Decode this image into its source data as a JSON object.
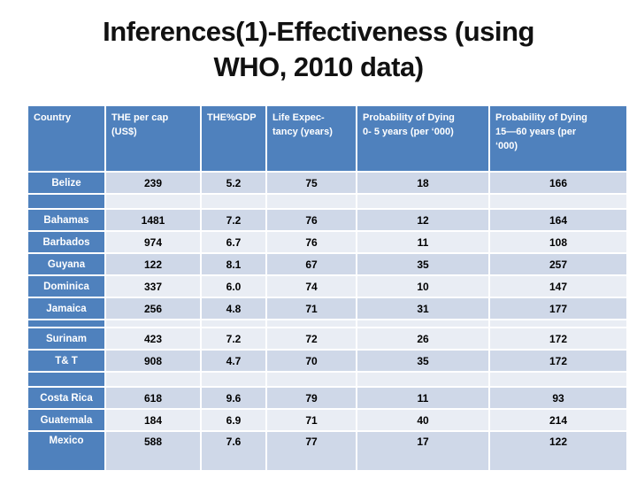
{
  "title": {
    "line1": "Inferences(1)-Effectiveness (using",
    "line2": "WHO, 2010 data)"
  },
  "table": {
    "columns": [
      {
        "label": "Country"
      },
      {
        "label": "THE per cap\n(US$)"
      },
      {
        "label": "THE%GDP"
      },
      {
        "label": "Life Expec-\ntancy (years)"
      },
      {
        "label": "Probability of Dying\n0- 5 years (per ‘000)"
      },
      {
        "label": "Probability of Dying\n15—60 years (per\n‘000)"
      }
    ],
    "rows": [
      {
        "country": "Belize",
        "values": [
          "239",
          "5.2",
          "75",
          "18",
          "166"
        ],
        "band": "dark",
        "kind": "normal"
      },
      {
        "country": "",
        "values": [
          "",
          "",
          "",
          "",
          ""
        ],
        "band": "light",
        "kind": "spacer"
      },
      {
        "country": "Bahamas",
        "values": [
          "1481",
          "7.2",
          "76",
          "12",
          "164"
        ],
        "band": "dark",
        "kind": "normal"
      },
      {
        "country": "Barbados",
        "values": [
          "974",
          "6.7",
          "76",
          "11",
          "108"
        ],
        "band": "light",
        "kind": "normal"
      },
      {
        "country": "Guyana",
        "values": [
          "122",
          "8.1",
          "67",
          "35",
          "257"
        ],
        "band": "dark",
        "kind": "normal"
      },
      {
        "country": "Dominica",
        "values": [
          "337",
          "6.0",
          "74",
          "10",
          "147"
        ],
        "band": "light",
        "kind": "normal"
      },
      {
        "country": "Jamaica",
        "values": [
          "256",
          "4.8",
          "71",
          "31",
          "177"
        ],
        "band": "dark",
        "kind": "normal"
      },
      {
        "country": "",
        "values": [
          "",
          "",
          "",
          "",
          ""
        ],
        "band": "light",
        "kind": "spacer-s"
      },
      {
        "country": "Surinam",
        "values": [
          "423",
          "7.2",
          "72",
          "26",
          "172"
        ],
        "band": "light",
        "kind": "normal"
      },
      {
        "country": "T& T",
        "values": [
          "908",
          "4.7",
          "70",
          "35",
          "172"
        ],
        "band": "dark",
        "kind": "normal"
      },
      {
        "country": "",
        "values": [
          "",
          "",
          "",
          "",
          ""
        ],
        "band": "light",
        "kind": "spacer"
      },
      {
        "country": "Costa Rica",
        "values": [
          "618",
          "9.6",
          "79",
          "11",
          "93"
        ],
        "band": "dark",
        "kind": "normal"
      },
      {
        "country": "Guatemala",
        "values": [
          "184",
          "6.9",
          "71",
          "40",
          "214"
        ],
        "band": "light",
        "kind": "normal"
      },
      {
        "country": "Mexico",
        "values": [
          "588",
          "7.6",
          "77",
          "17",
          "122"
        ],
        "band": "dark",
        "kind": "tall"
      }
    ]
  },
  "colors": {
    "accent": "#4F81BD",
    "band_dark": "#CFD8E8",
    "band_light": "#E9EDF4",
    "header_text": "#FFFFFF",
    "data_text": "#000000",
    "title_text": "#111111"
  }
}
